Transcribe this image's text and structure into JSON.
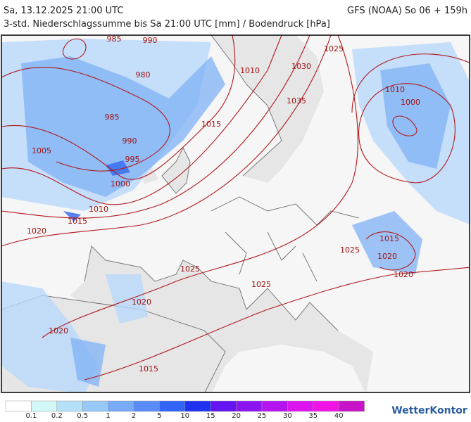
{
  "header": {
    "left_title": "Sa, 13.12.2025 21:00 UTC",
    "right_title": "GFS (NOAA) So 06 + 159h",
    "subtitle": "3-std. Niederschlagssumme bis Sa 21:00 UTC [mm] / Bodendruck [hPa]"
  },
  "map": {
    "isobar_labels": [
      "985",
      "990",
      "980",
      "1010",
      "1030",
      "1025",
      "1010",
      "1000",
      "1035",
      "985",
      "1015",
      "990",
      "1005",
      "995",
      "1000",
      "1010",
      "1015",
      "1020",
      "1015",
      "1025",
      "1020",
      "1020",
      "1025",
      "1025",
      "1020",
      "1020",
      "1015"
    ]
  },
  "legend": {
    "labels": [
      "0.1",
      "0.2",
      "0.5",
      "1",
      "2",
      "5",
      "10",
      "15",
      "20",
      "25",
      "30",
      "35",
      "40"
    ],
    "colors": [
      "#ffffff",
      "#d2f8f8",
      "#b4e1f8",
      "#96c8f8",
      "#78aaf8",
      "#5a8cf8",
      "#3264f8",
      "#1e32f0",
      "#6414f0",
      "#8c14f0",
      "#b414f0",
      "#dc14f0",
      "#f014e6",
      "#c814c8"
    ]
  },
  "logo": "WetterKontor"
}
